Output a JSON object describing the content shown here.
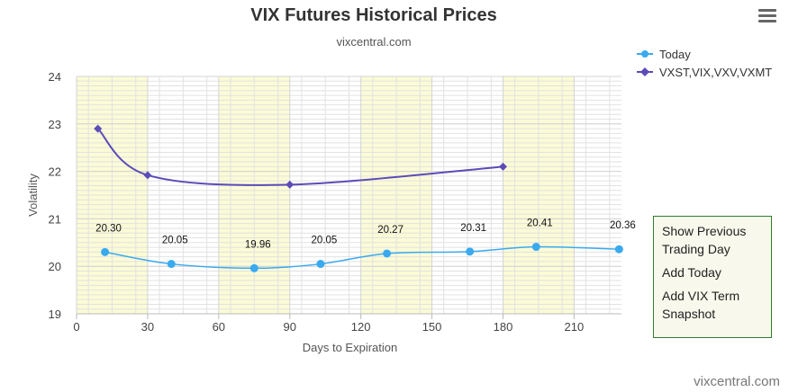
{
  "header": {
    "title": "VIX Futures Historical Prices",
    "subtitle": "vixcentral.com",
    "menu_icon": "hamburger-menu-icon"
  },
  "credit": "vixcentral.com",
  "context_menu": {
    "items": [
      "Show Previous Trading Day",
      "Add Today",
      "Add VIX Term Snapshot"
    ]
  },
  "colors": {
    "today": "#3aaaf0",
    "vxst": "#5b4cb8",
    "band": "#fbfbd6",
    "grid": "#e2e2e2"
  },
  "chart_data": {
    "type": "line",
    "title": "VIX Futures Historical Prices",
    "subtitle": "vixcentral.com",
    "xlabel": "Days to Expiration",
    "ylabel": "Volatility",
    "xlim": [
      0,
      230
    ],
    "ylim": [
      19,
      24
    ],
    "xticks": [
      0,
      30,
      60,
      90,
      120,
      150,
      180,
      210
    ],
    "yticks": [
      19,
      20,
      21,
      22,
      23,
      24
    ],
    "shaded_bands": [
      [
        0,
        30
      ],
      [
        60,
        90
      ],
      [
        120,
        150
      ],
      [
        180,
        210
      ]
    ],
    "grid": true,
    "legend_position": "top-right",
    "series": [
      {
        "name": "Today",
        "marker": "circle",
        "points": [
          {
            "x": 12,
            "y": 20.3,
            "label": "20.30"
          },
          {
            "x": 40,
            "y": 20.05,
            "label": "20.05"
          },
          {
            "x": 75,
            "y": 19.96,
            "label": "19.96"
          },
          {
            "x": 103,
            "y": 20.05,
            "label": "20.05"
          },
          {
            "x": 131,
            "y": 20.27,
            "label": "20.27"
          },
          {
            "x": 166,
            "y": 20.31,
            "label": "20.31"
          },
          {
            "x": 194,
            "y": 20.41,
            "label": "20.41"
          },
          {
            "x": 229,
            "y": 20.36,
            "label": "20.36"
          }
        ]
      },
      {
        "name": "VXST,VIX,VXV,VXMT",
        "marker": "diamond",
        "points": [
          {
            "x": 9,
            "y": 22.9
          },
          {
            "x": 30,
            "y": 21.92
          },
          {
            "x": 90,
            "y": 21.72
          },
          {
            "x": 180,
            "y": 22.1
          }
        ]
      }
    ]
  }
}
